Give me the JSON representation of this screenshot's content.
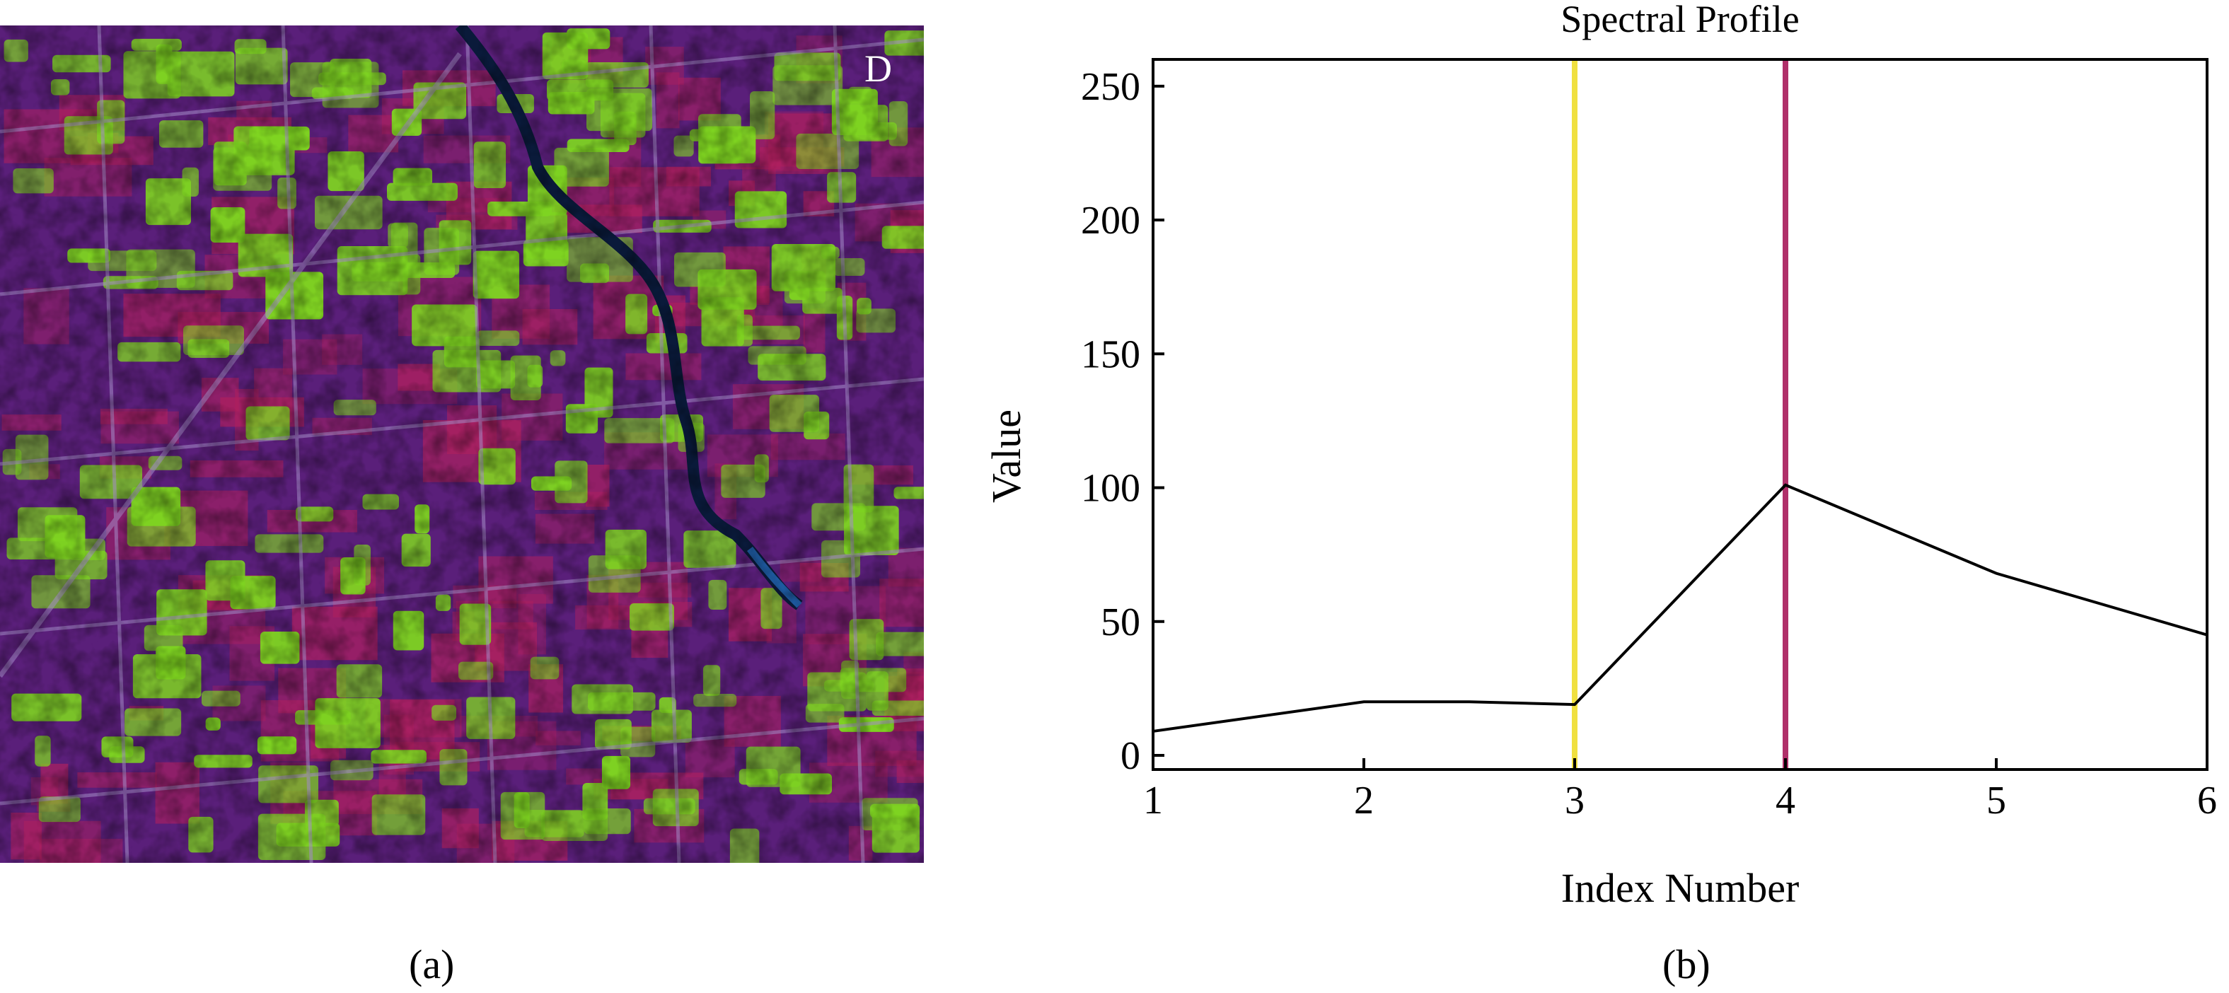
{
  "panel_a": {
    "label": "D",
    "caption": "(a)",
    "image": "false-color satellite image of agricultural fields with a winding river",
    "colors": {
      "background": "#5a1f7a",
      "vegetation": "#7ed321",
      "crop_red": "#b0205e",
      "water": "#0a1a3a"
    }
  },
  "panel_b": {
    "caption": "(b)"
  },
  "chart_data": {
    "type": "line",
    "title": "Spectral Profile",
    "xlabel": "Index Number",
    "ylabel": "Value",
    "xlim": [
      1,
      6
    ],
    "ylim": [
      0,
      260
    ],
    "x_ticks": [
      1,
      2,
      3,
      4,
      5,
      6
    ],
    "y_ticks": [
      0,
      50,
      100,
      150,
      200,
      250
    ],
    "grid": false,
    "series": [
      {
        "x": [
          1,
          2,
          2.5,
          3,
          4,
          5,
          6
        ],
        "y": [
          9,
          20,
          20,
          19,
          101,
          68,
          45
        ],
        "color": "#000000"
      }
    ],
    "markers": [
      {
        "x": 3,
        "color": "#f0e040"
      },
      {
        "x": 4,
        "color": "#b0306a"
      }
    ]
  }
}
